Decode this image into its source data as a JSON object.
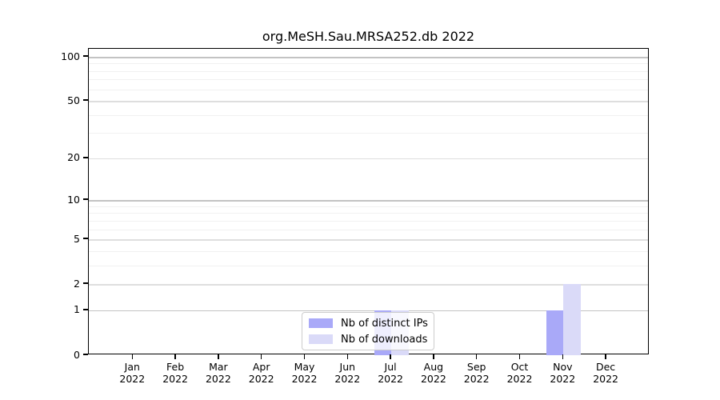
{
  "title": "org.MeSH.Sau.MRSA252.db 2022",
  "colors": {
    "distinct_ips_bar": "#a9a9f8",
    "downloads_bar": "#dadaf8",
    "grid_decade": "#c3c3c3",
    "grid_mid": "#dedede",
    "grid_minor": "#f1f1f1",
    "axis": "#000000"
  },
  "chart_data": {
    "type": "bar",
    "title": "org.MeSH.Sau.MRSA252.db 2022",
    "categories": [
      "Jan",
      "Feb",
      "Mar",
      "Apr",
      "May",
      "Jun",
      "Jul",
      "Aug",
      "Sep",
      "Oct",
      "Nov",
      "Dec"
    ],
    "year_label": "2022",
    "series": [
      {
        "name": "Nb of distinct IPs",
        "color": "#a9a9f8",
        "values": [
          0,
          0,
          0,
          0,
          0,
          0,
          1,
          0,
          0,
          0,
          1,
          0
        ]
      },
      {
        "name": "Nb of downloads",
        "color": "#dadaf8",
        "values": [
          0,
          0,
          0,
          0,
          0,
          0,
          1,
          0,
          0,
          0,
          2,
          0
        ]
      }
    ],
    "xlabel": "",
    "ylabel": "",
    "yscale": "log1p",
    "y_ticks": [
      0,
      1,
      2,
      5,
      10,
      20,
      50,
      100
    ],
    "y_decade_ticks": [
      1,
      10,
      100
    ],
    "y_minor_ticks": [
      3,
      4,
      6,
      7,
      8,
      9,
      30,
      40,
      60,
      70,
      80,
      90
    ],
    "ylim": [
      0,
      113
    ],
    "grid": true,
    "legend_position": "inside-bottom-center"
  }
}
